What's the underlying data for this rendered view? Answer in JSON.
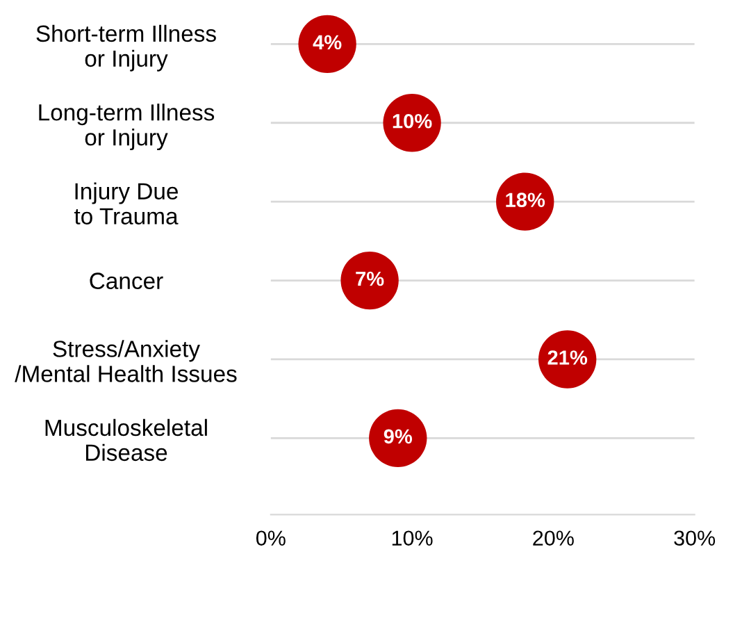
{
  "chart_data": {
    "type": "scatter",
    "orientation": "horizontal",
    "categories": [
      "Short-term Illness\nor Injury",
      "Long-term Illness\nor Injury",
      "Injury Due\nto Trauma",
      "Cancer",
      "Stress/Anxiety\n/Mental Health Issues",
      "Musculoskeletal\nDisease"
    ],
    "values": [
      4,
      10,
      18,
      7,
      21,
      9
    ],
    "value_labels": [
      "4%",
      "10%",
      "18%",
      "7%",
      "21%",
      "9%"
    ],
    "color": "#c00000",
    "xlim": [
      0,
      30
    ],
    "xticks": [
      {
        "value": 0,
        "label": "0%"
      },
      {
        "value": 10,
        "label": "10%"
      },
      {
        "value": 20,
        "label": "20%"
      },
      {
        "value": 30,
        "label": "30%"
      }
    ],
    "grid": "y",
    "marker": "circle"
  }
}
